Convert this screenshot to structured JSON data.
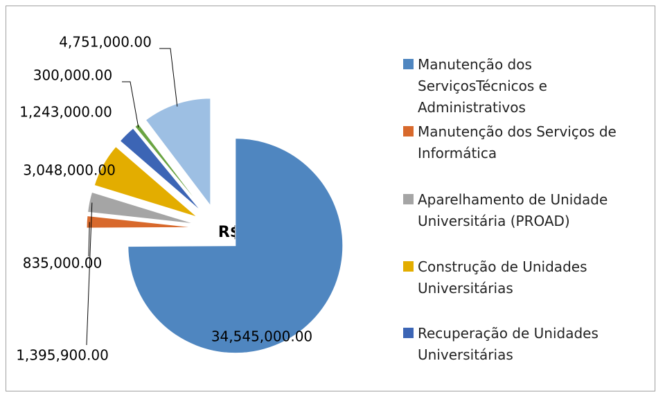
{
  "chart_data": {
    "type": "pie",
    "title": "R$",
    "categories": [
      "Manutenção dos ServiçosTécnicos e Administrativos",
      "Manutenção dos Serviços de Informática",
      "Aparelhamento de Unidade Universitária (PROAD)",
      "Construção de Unidades Universitárias",
      "Recuperação de Unidades Universitárias",
      null,
      null
    ],
    "values": [
      34545000,
      835000,
      1395900,
      3048000,
      1243000,
      300000,
      4751000
    ],
    "value_labels": [
      "34,545,000.00",
      "835,000.00",
      "1,395,900.00",
      "3,048,000.00",
      "1,243,000.00",
      "300,000.00",
      "4,751,000.00"
    ],
    "colors": [
      "#4f86c0",
      "#d8692c",
      "#a5a5a5",
      "#e3ad00",
      "#3c65b5",
      "#6aa442",
      "#9dbfe3"
    ],
    "legend": "right"
  }
}
